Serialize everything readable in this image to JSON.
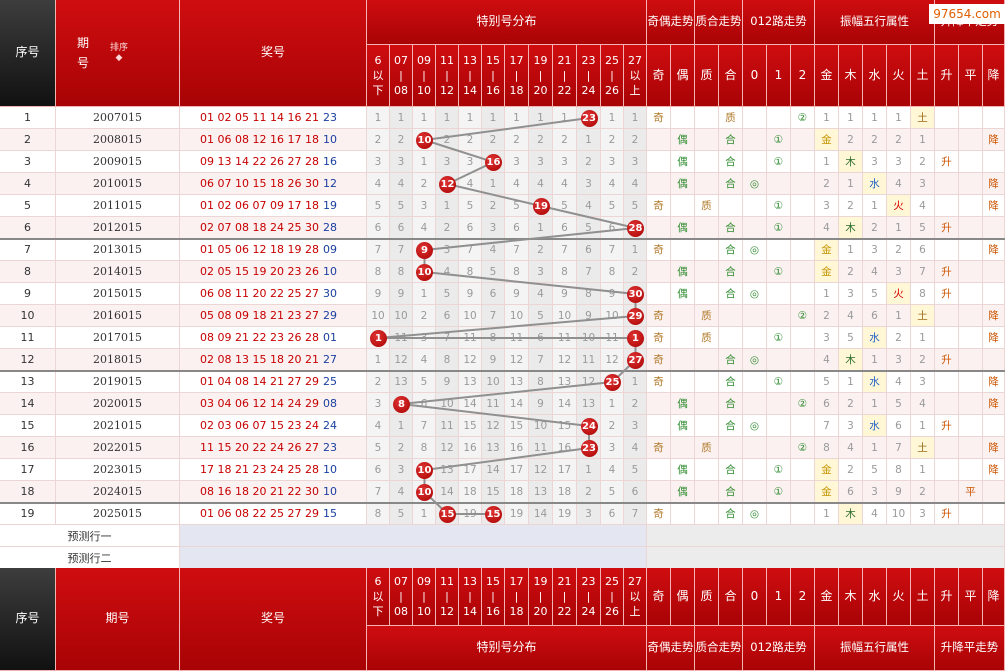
{
  "site_badge": "97654.com",
  "header": {
    "seq": "序号",
    "period": "期号",
    "sort": "排序",
    "award": "奖号",
    "dist_title": "特别号分布",
    "odd_even": "奇偶走势",
    "prime_comp": "质合走势",
    "road012": "012路走势",
    "amp_wuxing": "振幅五行属性",
    "rise_fall": "升降平走势",
    "ranges": [
      [
        "6",
        "以",
        "下"
      ],
      [
        "07",
        "|",
        "08"
      ],
      [
        "09",
        "|",
        "10"
      ],
      [
        "11",
        "|",
        "12"
      ],
      [
        "13",
        "|",
        "14"
      ],
      [
        "15",
        "|",
        "16"
      ],
      [
        "17",
        "|",
        "18"
      ],
      [
        "19",
        "|",
        "20"
      ],
      [
        "21",
        "|",
        "22"
      ],
      [
        "23",
        "|",
        "24"
      ],
      [
        "25",
        "|",
        "26"
      ],
      [
        "27",
        "以",
        "上"
      ]
    ],
    "sub": [
      "奇",
      "偶",
      "质",
      "合",
      "0",
      "1",
      "2",
      "金",
      "木",
      "水",
      "火",
      "土",
      "升",
      "平",
      "降"
    ]
  },
  "rows": [
    {
      "seq": "1",
      "period": "2007015",
      "red": "01 02 05 11 14 16 21",
      "blue": "23",
      "cells": [
        "1",
        "1",
        "1",
        "1",
        "1",
        "1",
        "1",
        "1",
        "1",
        "23",
        "1",
        "1"
      ],
      "ball": "23",
      "oe": [
        "奇",
        ""
      ],
      "pc": [
        "",
        "质"
      ],
      "road": [
        "",
        "",
        "②"
      ],
      "amp": "1",
      "wx": [
        "1",
        "1",
        "1",
        "土"
      ],
      "rf": [
        "",
        "",
        ""
      ]
    },
    {
      "seq": "2",
      "period": "2008015",
      "red": "01 06 08 12 16 17 18",
      "blue": "10",
      "cells": [
        "2",
        "2",
        "10",
        "2",
        "2",
        "2",
        "2",
        "2",
        "2",
        "1",
        "2",
        "2"
      ],
      "ball": "10",
      "oe": [
        "",
        "偶"
      ],
      "pc": [
        "",
        "合"
      ],
      "road": [
        "",
        "①",
        ""
      ],
      "amp": "金",
      "wx": [
        "2",
        "2",
        "2",
        "1"
      ],
      "rf": [
        "",
        "",
        "降"
      ]
    },
    {
      "seq": "3",
      "period": "2009015",
      "red": "09 13 14 22 26 27 28",
      "blue": "16",
      "cells": [
        "3",
        "3",
        "1",
        "3",
        "3",
        "16",
        "3",
        "3",
        "3",
        "2",
        "3",
        "3"
      ],
      "ball": "16",
      "oe": [
        "",
        "偶"
      ],
      "pc": [
        "",
        "合"
      ],
      "road": [
        "",
        "①",
        ""
      ],
      "amp": "1",
      "wx": [
        "木",
        "3",
        "3",
        "2"
      ],
      "rf": [
        "升",
        "",
        ""
      ]
    },
    {
      "seq": "4",
      "period": "2010015",
      "red": "06 07 10 15 18 26 30",
      "blue": "12",
      "cells": [
        "4",
        "4",
        "2",
        "12",
        "4",
        "1",
        "4",
        "4",
        "4",
        "3",
        "4",
        "4"
      ],
      "ball": "12",
      "oe": [
        "",
        "偶"
      ],
      "pc": [
        "",
        "合"
      ],
      "road": [
        "◎",
        "",
        ""
      ],
      "amp": "2",
      "wx": [
        "1",
        "水",
        "4",
        "3"
      ],
      "rf": [
        "",
        "",
        "降"
      ]
    },
    {
      "seq": "5",
      "period": "2011015",
      "red": "01 02 06 07 09 17 18",
      "blue": "19",
      "cells": [
        "5",
        "5",
        "3",
        "1",
        "5",
        "2",
        "5",
        "19",
        "5",
        "4",
        "5",
        "5"
      ],
      "ball": "19",
      "oe": [
        "奇",
        ""
      ],
      "pc": [
        "质",
        ""
      ],
      "road": [
        "",
        "①",
        ""
      ],
      "amp": "3",
      "wx": [
        "2",
        "1",
        "火",
        "4"
      ],
      "rf": [
        "",
        "",
        "降"
      ]
    },
    {
      "seq": "6",
      "period": "2012015",
      "red": "02 07 08 18 24 25 30",
      "blue": "28",
      "cells": [
        "6",
        "6",
        "4",
        "2",
        "6",
        "3",
        "6",
        "1",
        "6",
        "5",
        "6",
        "28"
      ],
      "ball": "28",
      "oe": [
        "",
        "偶"
      ],
      "pc": [
        "",
        "合"
      ],
      "road": [
        "",
        "①",
        ""
      ],
      "amp": "4",
      "wx": [
        "木",
        "2",
        "1",
        "5"
      ],
      "rf": [
        "升",
        "",
        ""
      ]
    },
    {
      "seq": "7",
      "period": "2013015",
      "red": "01 05 06 12 18 19 28",
      "blue": "09",
      "cells": [
        "7",
        "7",
        "9",
        "3",
        "7",
        "4",
        "7",
        "2",
        "7",
        "6",
        "7",
        "1"
      ],
      "ball": "9",
      "oe": [
        "奇",
        ""
      ],
      "pc": [
        "",
        "合"
      ],
      "road": [
        "◎",
        "",
        ""
      ],
      "amp": "金",
      "wx": [
        "1",
        "3",
        "2",
        "6"
      ],
      "rf": [
        "",
        "",
        "降"
      ]
    },
    {
      "seq": "8",
      "period": "2014015",
      "red": "02 05 15 19 20 23 26",
      "blue": "10",
      "cells": [
        "8",
        "8",
        "10",
        "4",
        "8",
        "5",
        "8",
        "3",
        "8",
        "7",
        "8",
        "2"
      ],
      "ball": "10",
      "oe": [
        "",
        "偶"
      ],
      "pc": [
        "",
        "合"
      ],
      "road": [
        "",
        "①",
        ""
      ],
      "amp": "金",
      "wx": [
        "2",
        "4",
        "3",
        "7"
      ],
      "rf": [
        "升",
        "",
        ""
      ]
    },
    {
      "seq": "9",
      "period": "2015015",
      "red": "06 08 11 20 22 25 27",
      "blue": "30",
      "cells": [
        "9",
        "9",
        "1",
        "5",
        "9",
        "6",
        "9",
        "4",
        "9",
        "8",
        "9",
        "30"
      ],
      "ball": "30",
      "oe": [
        "",
        "偶"
      ],
      "pc": [
        "",
        "合"
      ],
      "road": [
        "◎",
        "",
        ""
      ],
      "amp": "1",
      "wx": [
        "3",
        "5",
        "火",
        "8"
      ],
      "rf": [
        "升",
        "",
        ""
      ]
    },
    {
      "seq": "10",
      "period": "2016015",
      "red": "05 08 09 18 21 23 27",
      "blue": "29",
      "cells": [
        "10",
        "10",
        "2",
        "6",
        "10",
        "7",
        "10",
        "5",
        "10",
        "9",
        "10",
        "29"
      ],
      "ball": "29",
      "oe": [
        "奇",
        ""
      ],
      "pc": [
        "质",
        ""
      ],
      "road": [
        "",
        "",
        "②"
      ],
      "amp": "2",
      "wx": [
        "4",
        "6",
        "1",
        "土"
      ],
      "rf": [
        "",
        "",
        "降"
      ]
    },
    {
      "seq": "11",
      "period": "2017015",
      "red": "08 09 21 22 23 26 28",
      "blue": "01",
      "cells": [
        "1",
        "11",
        "3",
        "7",
        "11",
        "8",
        "11",
        "6",
        "11",
        "10",
        "11",
        "1"
      ],
      "ball": "1",
      "oe": [
        "奇",
        ""
      ],
      "pc": [
        "质",
        ""
      ],
      "road": [
        "",
        "①",
        ""
      ],
      "amp": "3",
      "wx": [
        "5",
        "水",
        "2",
        "1"
      ],
      "rf": [
        "",
        "",
        "降"
      ]
    },
    {
      "seq": "12",
      "period": "2018015",
      "red": "02 08 13 15 18 20 21",
      "blue": "27",
      "cells": [
        "1",
        "12",
        "4",
        "8",
        "12",
        "9",
        "12",
        "7",
        "12",
        "11",
        "12",
        "27"
      ],
      "ball": "27",
      "oe": [
        "奇",
        ""
      ],
      "pc": [
        "",
        "合"
      ],
      "road": [
        "◎",
        "",
        ""
      ],
      "amp": "4",
      "wx": [
        "木",
        "1",
        "3",
        "2"
      ],
      "rf": [
        "升",
        "",
        ""
      ]
    },
    {
      "seq": "13",
      "period": "2019015",
      "red": "01 04 08 14 21 27 29",
      "blue": "25",
      "cells": [
        "2",
        "13",
        "5",
        "9",
        "13",
        "10",
        "13",
        "8",
        "13",
        "12",
        "25",
        "1"
      ],
      "ball": "25",
      "oe": [
        "奇",
        ""
      ],
      "pc": [
        "",
        "合"
      ],
      "road": [
        "",
        "①",
        ""
      ],
      "amp": "5",
      "wx": [
        "1",
        "水",
        "4",
        "3"
      ],
      "rf": [
        "",
        "",
        "降"
      ]
    },
    {
      "seq": "14",
      "period": "2020015",
      "red": "03 04 06 12 14 24 29",
      "blue": "08",
      "cells": [
        "3",
        "8",
        "6",
        "10",
        "14",
        "11",
        "14",
        "9",
        "14",
        "13",
        "1",
        "2"
      ],
      "ball": "8",
      "oe": [
        "",
        "偶"
      ],
      "pc": [
        "",
        "合"
      ],
      "road": [
        "",
        "",
        "②"
      ],
      "amp": "6",
      "wx": [
        "2",
        "1",
        "5",
        "4"
      ],
      "rf": [
        "",
        "",
        "降"
      ]
    },
    {
      "seq": "15",
      "period": "2021015",
      "red": "02 03 06 07 15 23 24",
      "blue": "24",
      "cells": [
        "4",
        "1",
        "7",
        "11",
        "15",
        "12",
        "15",
        "10",
        "15",
        "24",
        "2",
        "3"
      ],
      "ball": "24",
      "oe": [
        "",
        "偶"
      ],
      "pc": [
        "",
        "合"
      ],
      "road": [
        "◎",
        "",
        ""
      ],
      "amp": "7",
      "wx": [
        "3",
        "水",
        "6",
        "1"
      ],
      "rf": [
        "升",
        "",
        ""
      ]
    },
    {
      "seq": "16",
      "period": "2022015",
      "red": "11 15 20 22 24 26 27",
      "blue": "23",
      "cells": [
        "5",
        "2",
        "8",
        "12",
        "16",
        "13",
        "16",
        "11",
        "16",
        "23",
        "3",
        "4"
      ],
      "ball": "23",
      "oe": [
        "奇",
        ""
      ],
      "pc": [
        "质",
        ""
      ],
      "road": [
        "",
        "",
        "②"
      ],
      "amp": "8",
      "wx": [
        "4",
        "1",
        "7",
        "土"
      ],
      "rf": [
        "",
        "",
        "降"
      ]
    },
    {
      "seq": "17",
      "period": "2023015",
      "red": "17 18 21 23 24 25 28",
      "blue": "10",
      "cells": [
        "6",
        "3",
        "10",
        "13",
        "17",
        "14",
        "17",
        "12",
        "17",
        "1",
        "4",
        "5"
      ],
      "ball": "10",
      "oe": [
        "",
        "偶"
      ],
      "pc": [
        "",
        "合"
      ],
      "road": [
        "",
        "①",
        ""
      ],
      "amp": "金",
      "wx": [
        "2",
        "5",
        "8",
        "1"
      ],
      "rf": [
        "",
        "",
        "降"
      ]
    },
    {
      "seq": "18",
      "period": "2024015",
      "red": "08 16 18 20 21 22 30",
      "blue": "10",
      "cells": [
        "7",
        "4",
        "10",
        "14",
        "18",
        "15",
        "18",
        "13",
        "18",
        "2",
        "5",
        "6"
      ],
      "ball": "10",
      "oe": [
        "",
        "偶"
      ],
      "pc": [
        "",
        "合"
      ],
      "road": [
        "",
        "①",
        ""
      ],
      "amp": "金",
      "wx": [
        "6",
        "3",
        "9",
        "2"
      ],
      "rf": [
        "",
        "平",
        ""
      ]
    },
    {
      "seq": "19",
      "period": "2025015",
      "red": "01 06 08 22 25 27 29",
      "blue": "15",
      "cells": [
        "8",
        "5",
        "1",
        "15",
        "19",
        "15",
        "19",
        "14",
        "19",
        "3",
        "6",
        "7"
      ],
      "ball": "15",
      "oe": [
        "奇",
        ""
      ],
      "pc": [
        "",
        "合"
      ],
      "road": [
        "◎",
        "",
        ""
      ],
      "amp": "1",
      "wx": [
        "木",
        "4",
        "10",
        "3"
      ],
      "rf": [
        "升",
        "",
        ""
      ]
    }
  ],
  "predict": [
    "预测行一",
    "预测行二"
  ]
}
